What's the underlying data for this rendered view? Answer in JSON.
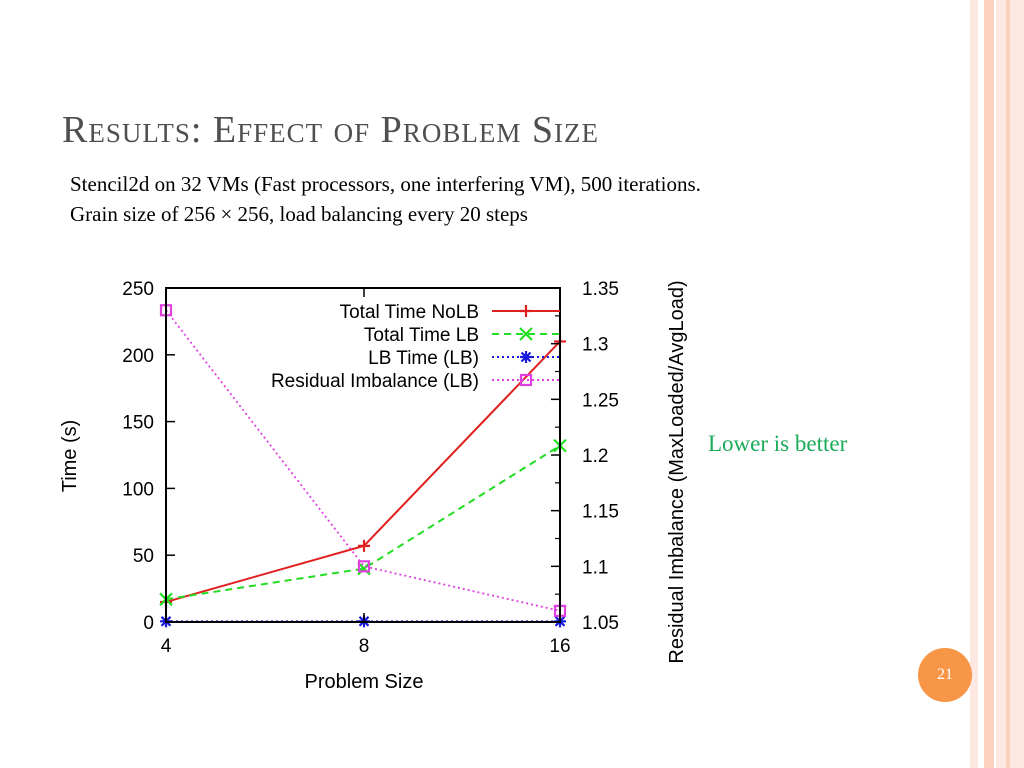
{
  "slide": {
    "title": "Results: Effect of Problem Size",
    "subtitle_lines": [
      "Stencil2d on 32 VMs (Fast processors, one interfering VM), 500 iterations.",
      "Grain size of 256 × 256, load balancing every 20 steps"
    ],
    "note": "Lower is better",
    "page_number": "21"
  },
  "colors": {
    "stripe_light": "#fde9e1",
    "stripe_mid": "#fbd2c0",
    "title": "#4f4f4f",
    "note": "#1aab5a",
    "badge": "#f79646",
    "series_nolb": "#e0201e",
    "series_lb": "#22dd22",
    "series_lbtime": "#1a1adc",
    "series_residual": "#e040e0"
  },
  "chart_data": {
    "type": "line",
    "xlabel": "Problem Size",
    "ylabel": "Time (s)",
    "y2label": "Residual Imbalance (MaxLoaded/AvgLoad)",
    "x": [
      "4",
      "8",
      "16"
    ],
    "ylim": [
      0,
      250
    ],
    "yticks": [
      "0",
      "50",
      "100",
      "150",
      "200",
      "250"
    ],
    "y2lim": [
      1.05,
      1.35
    ],
    "y2ticks": [
      "1.05",
      "1.1",
      "1.15",
      "1.2",
      "1.25",
      "1.3",
      "1.35"
    ],
    "legend_position": "top-right",
    "series": [
      {
        "name": "Total Time NoLB",
        "axis": "left",
        "marker": "plus",
        "dash": "solid",
        "color": "#e0201e",
        "values": [
          15,
          57,
          210
        ]
      },
      {
        "name": "Total Time LB",
        "axis": "left",
        "marker": "x",
        "dash": "dashed",
        "color": "#22dd22",
        "values": [
          17,
          40,
          132
        ]
      },
      {
        "name": "LB Time (LB)",
        "axis": "left",
        "marker": "star",
        "dash": "dotted",
        "color": "#1a1adc",
        "values": [
          0.5,
          0.5,
          0.5
        ]
      },
      {
        "name": "Residual Imbalance (LB)",
        "axis": "right",
        "marker": "square",
        "dash": "dotted",
        "color": "#e040e0",
        "values": [
          1.33,
          1.1,
          1.06
        ]
      }
    ]
  }
}
